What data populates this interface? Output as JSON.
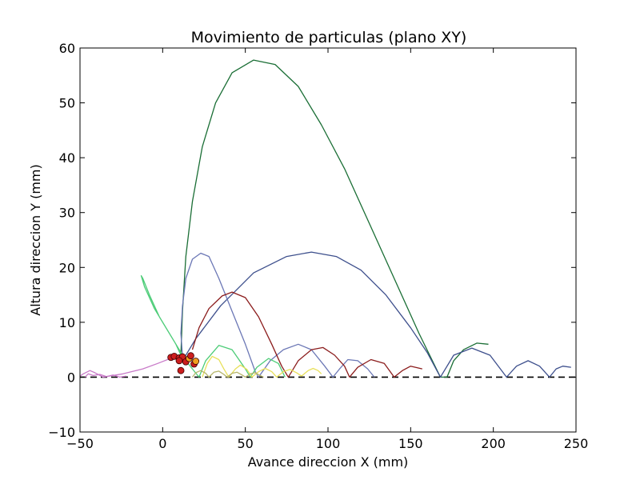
{
  "chart_data": {
    "type": "line",
    "title": "Movimiento de particulas (plano XY)",
    "xlabel": "Avance direccion X (mm)",
    "ylabel": "Altura direccion Y (mm)",
    "xlim": [
      -50,
      250
    ],
    "ylim": [
      -10,
      60
    ],
    "xticks": [
      -50,
      0,
      50,
      100,
      150,
      200,
      250
    ],
    "yticks": [
      -10,
      0,
      10,
      20,
      30,
      40,
      50,
      60
    ],
    "reference_line": {
      "y": 0,
      "style": "dashed",
      "color": "#000000"
    },
    "series": [
      {
        "color": "#1a6e35",
        "points": [
          [
            11,
            4
          ],
          [
            12,
            12
          ],
          [
            14,
            22
          ],
          [
            18,
            32
          ],
          [
            24,
            42
          ],
          [
            32,
            50
          ],
          [
            42,
            55.5
          ],
          [
            55,
            57.8
          ],
          [
            68,
            57
          ],
          [
            82,
            53
          ],
          [
            96,
            46
          ],
          [
            110,
            38
          ],
          [
            125,
            28
          ],
          [
            140,
            18
          ],
          [
            155,
            8
          ],
          [
            168,
            0
          ],
          [
            172,
            0
          ],
          [
            176,
            3
          ],
          [
            182,
            5
          ],
          [
            190,
            6.2
          ],
          [
            197,
            6
          ]
        ]
      },
      {
        "color": "#3d4f8c",
        "points": [
          [
            12,
            3
          ],
          [
            20,
            7
          ],
          [
            35,
            13
          ],
          [
            55,
            19
          ],
          [
            75,
            22
          ],
          [
            90,
            22.8
          ],
          [
            105,
            22
          ],
          [
            120,
            19.5
          ],
          [
            135,
            15
          ],
          [
            150,
            9
          ],
          [
            160,
            4.5
          ],
          [
            168,
            0
          ],
          [
            176,
            4
          ],
          [
            187,
            5.3
          ],
          [
            198,
            4
          ],
          [
            208,
            0
          ],
          [
            214,
            2
          ],
          [
            221,
            3
          ],
          [
            228,
            2
          ],
          [
            234,
            0
          ],
          [
            238,
            1.5
          ],
          [
            242,
            2
          ],
          [
            247,
            1.8
          ]
        ]
      },
      {
        "color": "#6b77b5",
        "points": [
          [
            12,
            4
          ],
          [
            11,
            8
          ],
          [
            12,
            13
          ],
          [
            14,
            18
          ],
          [
            18,
            21.5
          ],
          [
            23,
            22.6
          ],
          [
            28,
            22
          ],
          [
            34,
            18
          ],
          [
            42,
            12
          ],
          [
            50,
            6
          ],
          [
            56,
            1
          ],
          [
            58,
            0
          ],
          [
            65,
            3
          ],
          [
            73,
            5
          ],
          [
            82,
            6
          ],
          [
            90,
            5
          ],
          [
            98,
            2
          ],
          [
            103,
            0
          ],
          [
            107,
            1.5
          ],
          [
            112,
            3.2
          ],
          [
            118,
            3
          ],
          [
            124,
            1.5
          ],
          [
            128,
            0
          ]
        ]
      },
      {
        "color": "#8b1c1c",
        "points": [
          [
            18,
            5
          ],
          [
            22,
            9
          ],
          [
            28,
            12.5
          ],
          [
            36,
            14.8
          ],
          [
            42,
            15.5
          ],
          [
            50,
            14.5
          ],
          [
            58,
            11
          ],
          [
            66,
            6
          ],
          [
            72,
            2
          ],
          [
            76,
            0
          ],
          [
            82,
            3
          ],
          [
            90,
            5
          ],
          [
            97,
            5.4
          ],
          [
            104,
            4
          ],
          [
            110,
            2
          ],
          [
            113,
            0
          ],
          [
            118,
            1.8
          ],
          [
            126,
            3.2
          ],
          [
            134,
            2.5
          ],
          [
            140,
            0
          ],
          [
            145,
            1.2
          ],
          [
            150,
            2
          ],
          [
            157,
            1.5
          ]
        ]
      },
      {
        "color": "#4ccc77",
        "points": [
          [
            11,
            4
          ],
          [
            8,
            6
          ],
          [
            2,
            9
          ],
          [
            -5,
            12.5
          ],
          [
            -11,
            16.5
          ],
          [
            -13,
            18.5
          ],
          [
            -12,
            18
          ],
          [
            -8,
            15
          ],
          [
            -2,
            11
          ],
          [
            5,
            7.5
          ],
          [
            10,
            5
          ],
          [
            14,
            3
          ],
          [
            18,
            1.5
          ],
          [
            22,
            0
          ],
          [
            26,
            3
          ],
          [
            34,
            5.8
          ],
          [
            42,
            5
          ],
          [
            50,
            1.5
          ],
          [
            53,
            0
          ],
          [
            57,
            1.8
          ],
          [
            64,
            3.4
          ],
          [
            70,
            2.5
          ],
          [
            74,
            0
          ]
        ]
      },
      {
        "color": "#e8e05a",
        "points": [
          [
            24,
            0
          ],
          [
            27,
            2.5
          ],
          [
            30,
            3.8
          ],
          [
            34,
            3.2
          ],
          [
            37,
            1.5
          ],
          [
            40,
            0
          ],
          [
            44,
            1.5
          ],
          [
            47,
            2.2
          ],
          [
            51,
            1.4
          ],
          [
            54,
            0
          ],
          [
            58,
            1
          ],
          [
            62,
            1.6
          ],
          [
            66,
            1
          ],
          [
            69,
            0
          ],
          [
            73,
            1
          ],
          [
            77,
            1.4
          ],
          [
            81,
            0.8
          ],
          [
            84,
            0.2
          ],
          [
            88,
            1.2
          ],
          [
            91,
            1.6
          ],
          [
            94,
            1.2
          ],
          [
            96,
            0.6
          ]
        ]
      },
      {
        "color": "#b5b56a",
        "points": [
          [
            18,
            0
          ],
          [
            20,
            0.8
          ],
          [
            23,
            1.2
          ],
          [
            26,
            0.7
          ],
          [
            28,
            0
          ],
          [
            31,
            0.9
          ],
          [
            34,
            1.1
          ],
          [
            37,
            0.5
          ],
          [
            39,
            0
          ],
          [
            42,
            0.7
          ],
          [
            45,
            0.9
          ],
          [
            48,
            0.4
          ],
          [
            50,
            0
          ],
          [
            53,
            0.6
          ],
          [
            56,
            0.8
          ],
          [
            59,
            0.3
          ],
          [
            61,
            0
          ]
        ]
      },
      {
        "color": "#c87ac8",
        "points": [
          [
            8,
            3.8
          ],
          [
            -3,
            2.5
          ],
          [
            -12,
            1.5
          ],
          [
            -24,
            0.6
          ],
          [
            -36,
            0
          ],
          [
            -41,
            0.8
          ],
          [
            -44,
            1.2
          ],
          [
            -48,
            0.6
          ],
          [
            -50,
            0.2
          ]
        ]
      },
      {
        "color": "#c87ac8",
        "points": [
          [
            -47,
            0
          ],
          [
            -45,
            0.6
          ],
          [
            -42,
            0.3
          ],
          [
            -38,
            0.5
          ],
          [
            -34,
            0.1
          ],
          [
            -30,
            0.4
          ],
          [
            -26,
            0
          ],
          [
            -22,
            0.2
          ]
        ]
      }
    ],
    "markers": [
      {
        "x": 5,
        "y": 3.6,
        "color": "#cc1e1e"
      },
      {
        "x": 7,
        "y": 3.8,
        "color": "#cc1e1e"
      },
      {
        "x": 10,
        "y": 3.5,
        "color": "#cc1e1e"
      },
      {
        "x": 12,
        "y": 3.7,
        "color": "#cc1e1e"
      },
      {
        "x": 14,
        "y": 2.8,
        "color": "#cc1e1e"
      },
      {
        "x": 16,
        "y": 3.4,
        "color": "#f0a020"
      },
      {
        "x": 17,
        "y": 3.9,
        "color": "#cc1e1e"
      },
      {
        "x": 19,
        "y": 2.4,
        "color": "#cc1e1e"
      },
      {
        "x": 20,
        "y": 2.9,
        "color": "#f0a020"
      },
      {
        "x": 10,
        "y": 3.0,
        "color": "#cc1e1e"
      },
      {
        "x": 11,
        "y": 1.2,
        "color": "#cc1e1e"
      }
    ]
  }
}
